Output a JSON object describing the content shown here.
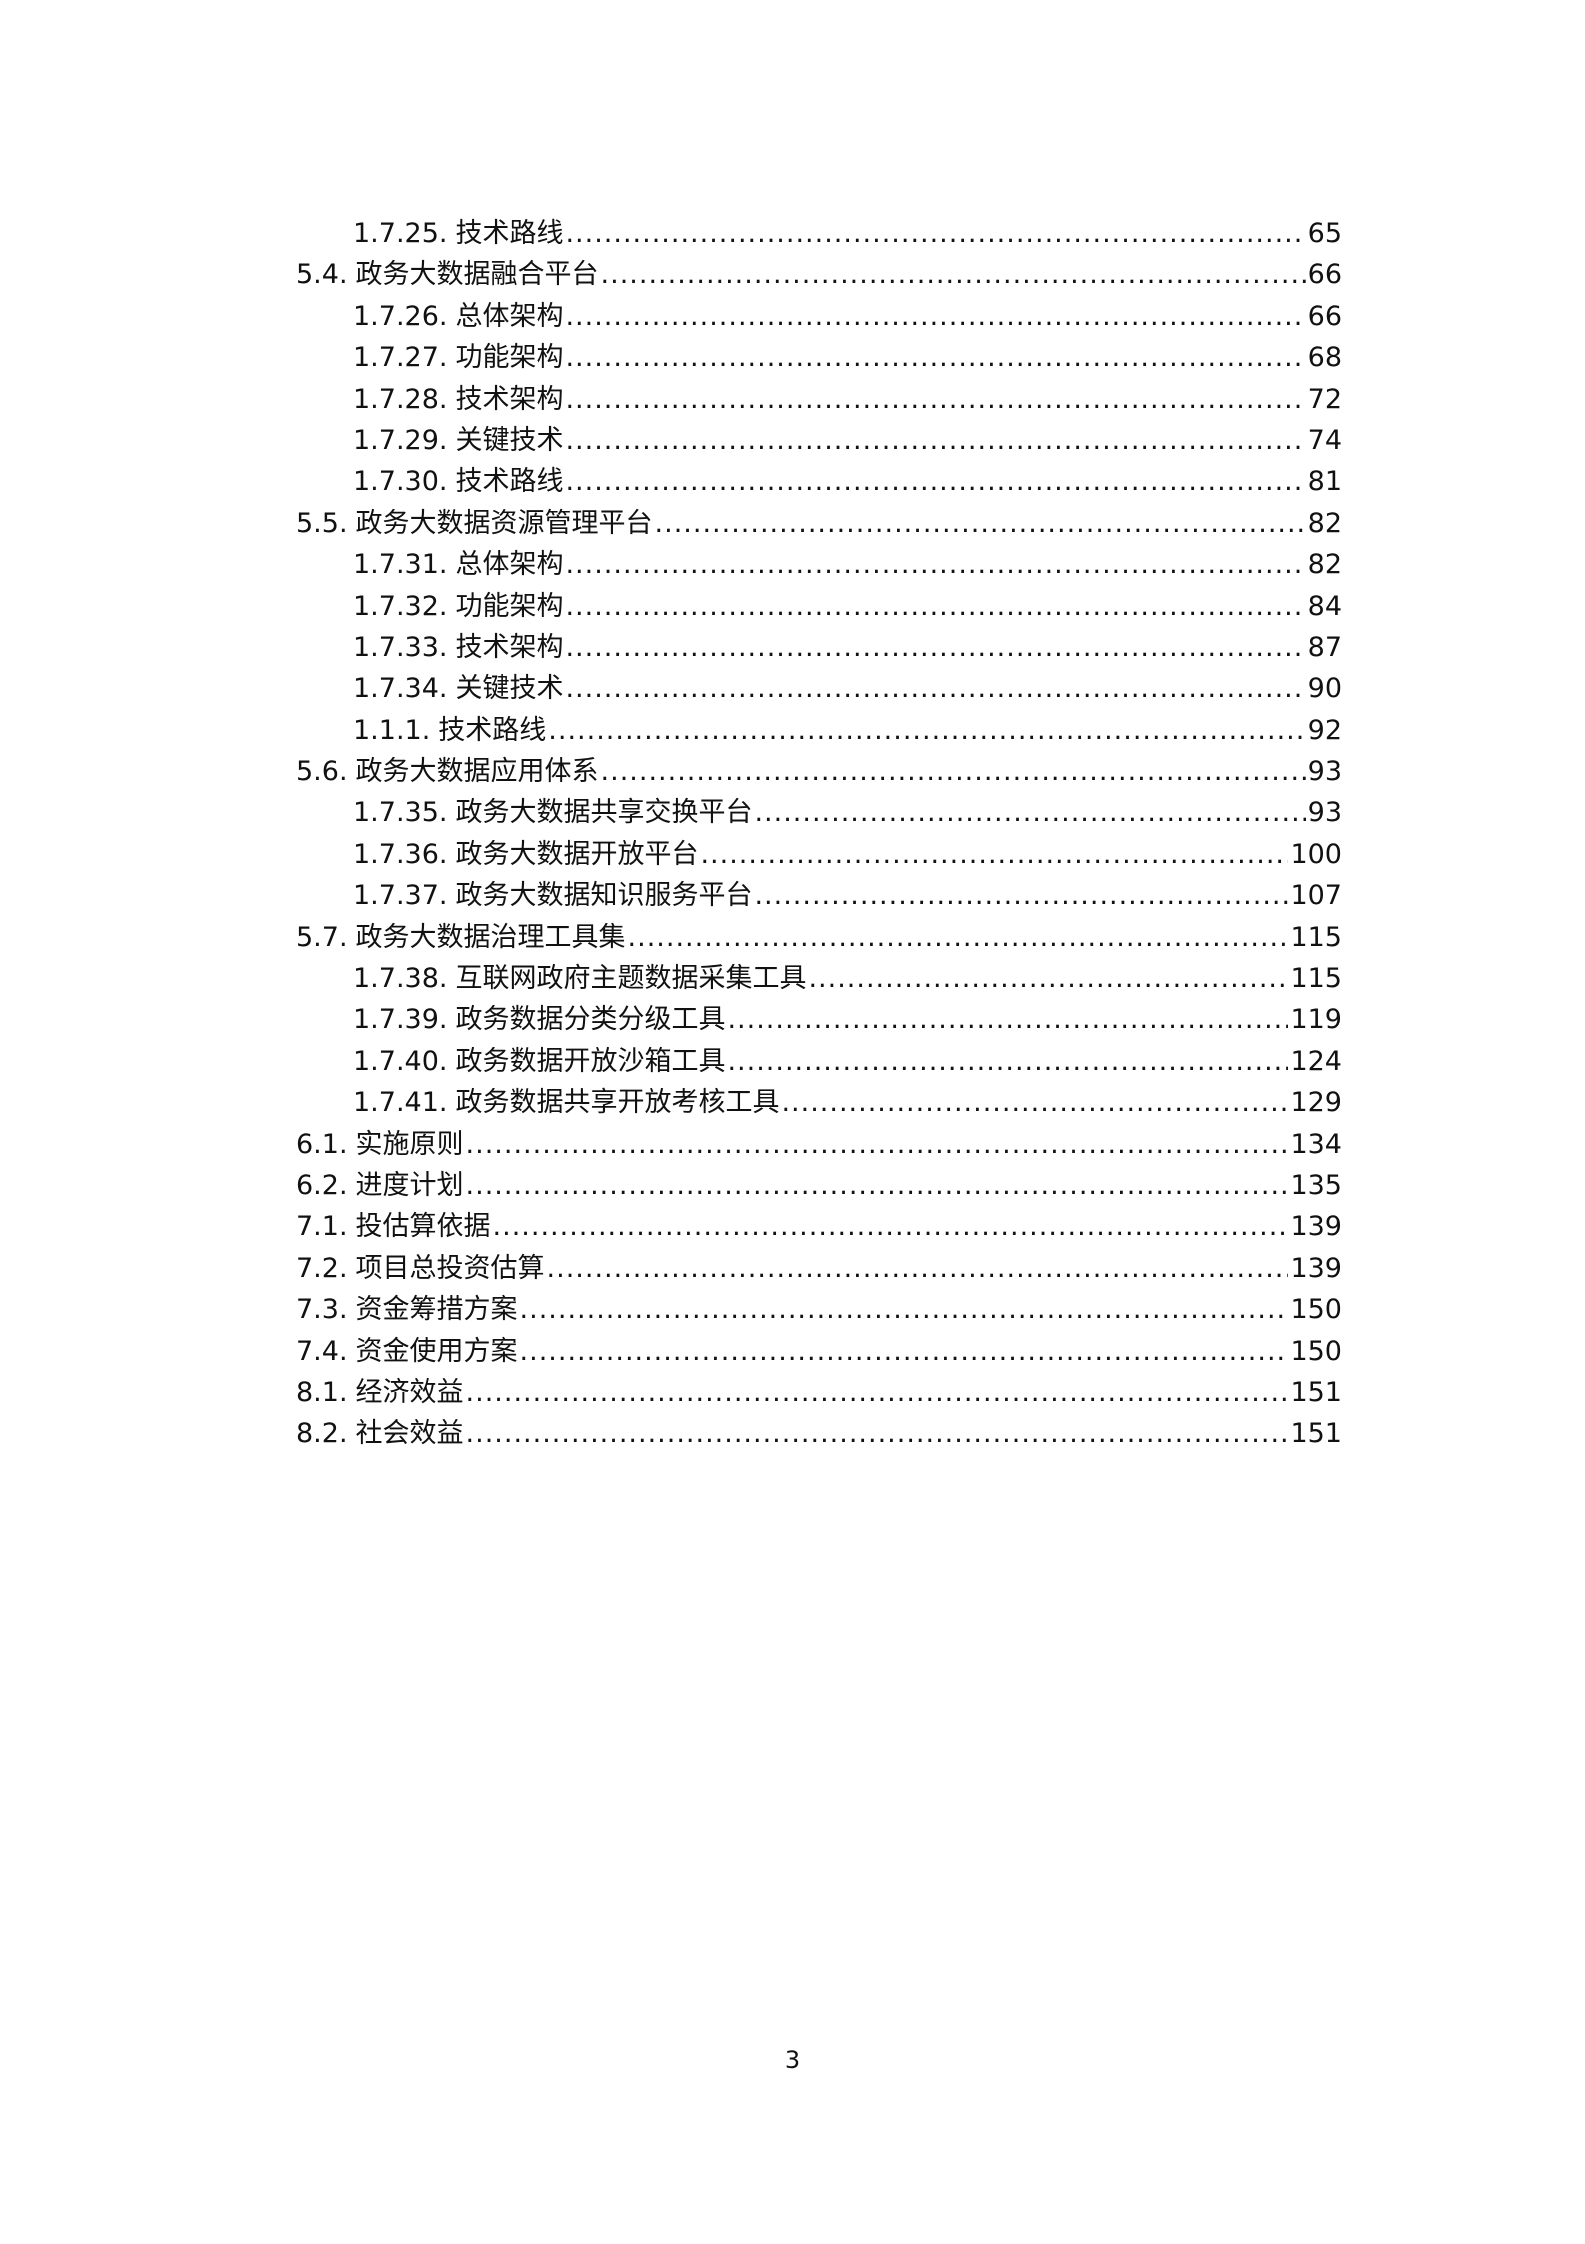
{
  "toc": [
    {
      "level": 2,
      "number": "1.7.25.",
      "title": "技术路线",
      "page": "65"
    },
    {
      "level": 1,
      "number": "5.4.",
      "title": "政务大数据融合平台",
      "page": "66"
    },
    {
      "level": 2,
      "number": "1.7.26.",
      "title": "总体架构",
      "page": "66"
    },
    {
      "level": 2,
      "number": "1.7.27.",
      "title": "功能架构",
      "page": "68"
    },
    {
      "level": 2,
      "number": "1.7.28.",
      "title": "技术架构",
      "page": "72"
    },
    {
      "level": 2,
      "number": "1.7.29.",
      "title": "关键技术",
      "page": "74"
    },
    {
      "level": 2,
      "number": "1.7.30.",
      "title": "技术路线",
      "page": "81"
    },
    {
      "level": 1,
      "number": "5.5.",
      "title": "政务大数据资源管理平台",
      "page": "82"
    },
    {
      "level": 2,
      "number": "1.7.31.",
      "title": "总体架构",
      "page": "82"
    },
    {
      "level": 2,
      "number": "1.7.32.",
      "title": "功能架构",
      "page": "84"
    },
    {
      "level": 2,
      "number": "1.7.33.",
      "title": "技术架构",
      "page": "87"
    },
    {
      "level": 2,
      "number": "1.7.34.",
      "title": "关键技术",
      "page": "90"
    },
    {
      "level": 2,
      "number": "1.1.1.",
      "title": "技术路线",
      "page": "92"
    },
    {
      "level": 1,
      "number": "5.6.",
      "title": "政务大数据应用体系",
      "page": "93"
    },
    {
      "level": 2,
      "number": "1.7.35.",
      "title": "政务大数据共享交换平台",
      "page": "93"
    },
    {
      "level": 2,
      "number": "1.7.36.",
      "title": "政务大数据开放平台",
      "page": "100"
    },
    {
      "level": 2,
      "number": "1.7.37.",
      "title": "政务大数据知识服务平台",
      "page": "107"
    },
    {
      "level": 1,
      "number": "5.7.",
      "title": "政务大数据治理工具集",
      "page": "115"
    },
    {
      "level": 2,
      "number": "1.7.38.",
      "title": "互联网政府主题数据采集工具",
      "page": "115"
    },
    {
      "level": 2,
      "number": "1.7.39.",
      "title": "政务数据分类分级工具",
      "page": "119"
    },
    {
      "level": 2,
      "number": "1.7.40.",
      "title": "政务数据开放沙箱工具",
      "page": "124"
    },
    {
      "level": 2,
      "number": "1.7.41.",
      "title": "政务数据共享开放考核工具",
      "page": "129"
    },
    {
      "level": 1,
      "number": "6.1.",
      "title": "实施原则",
      "page": "134"
    },
    {
      "level": 1,
      "number": "6.2.",
      "title": "进度计划",
      "page": "135"
    },
    {
      "level": 1,
      "number": "7.1.",
      "title": "投估算依据",
      "page": "139"
    },
    {
      "level": 1,
      "number": "7.2.",
      "title": "项目总投资估算",
      "page": "139"
    },
    {
      "level": 1,
      "number": "7.3.",
      "title": "资金筹措方案",
      "page": "150"
    },
    {
      "level": 1,
      "number": "7.4.",
      "title": "资金使用方案",
      "page": "150"
    },
    {
      "level": 1,
      "number": "8.1.",
      "title": "经济效益",
      "page": "151"
    },
    {
      "level": 1,
      "number": "8.2.",
      "title": "社会效益",
      "page": "151"
    }
  ],
  "footer": {
    "page_number": "3"
  }
}
